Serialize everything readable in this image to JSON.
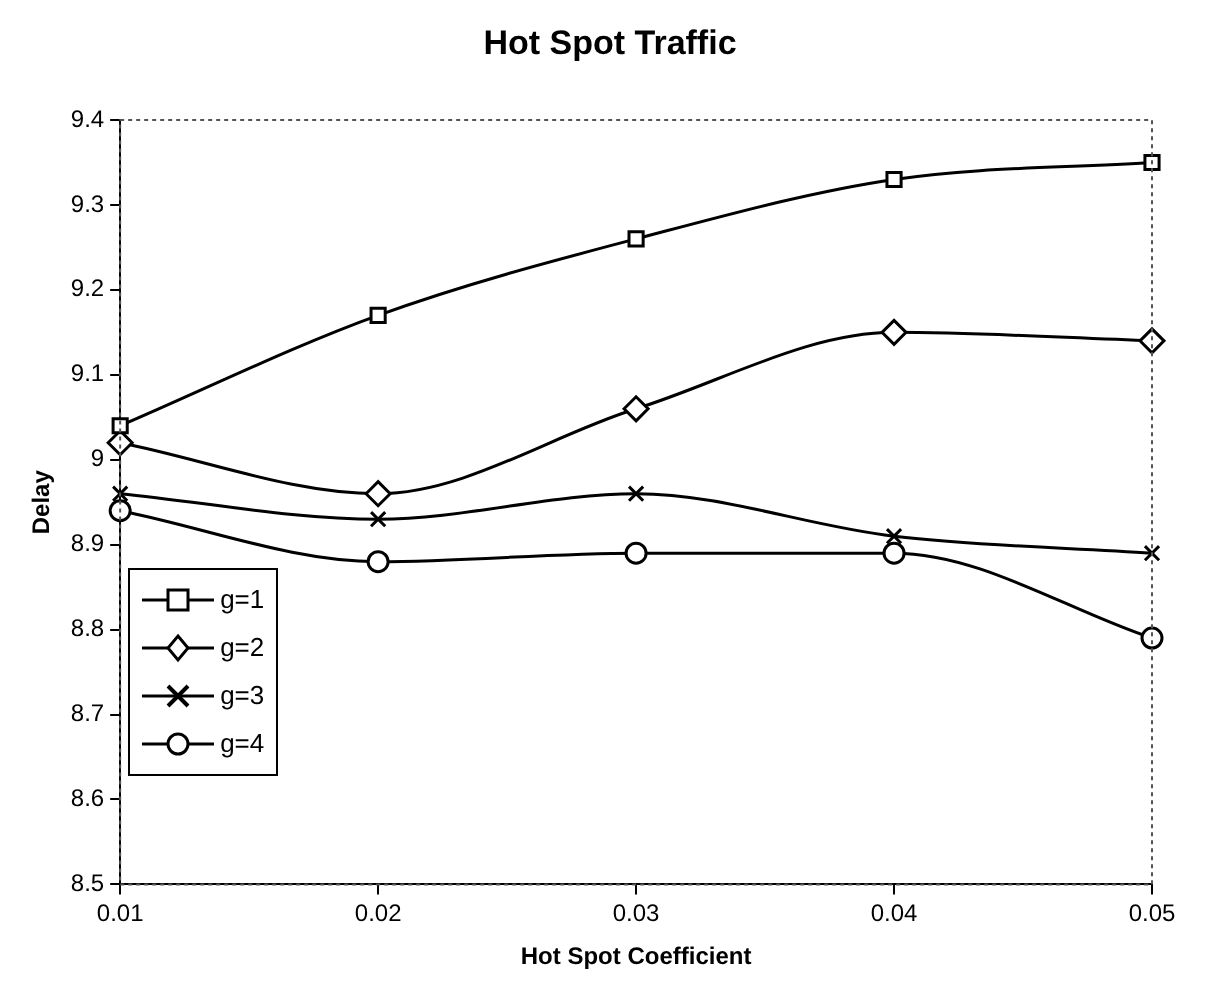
{
  "chart_data": {
    "type": "line",
    "title": "Hot Spot Traffic",
    "xlabel": "Hot Spot Coefficient",
    "ylabel": "Delay",
    "x": [
      0.01,
      0.02,
      0.03,
      0.04,
      0.05
    ],
    "xlim": [
      0.01,
      0.05
    ],
    "xticks": [
      0.01,
      0.02,
      0.03,
      0.04,
      0.05
    ],
    "ylim": [
      8.5,
      9.4
    ],
    "yticks": [
      8.5,
      8.6,
      8.7,
      8.8,
      8.9,
      9,
      9.1,
      9.2,
      9.3,
      9.4
    ],
    "grid": false,
    "legend": "left",
    "line_style": "solid",
    "series": [
      {
        "name": "g=1",
        "color": "#000000",
        "marker": "square",
        "values": [
          9.04,
          9.17,
          9.26,
          9.33,
          9.35
        ]
      },
      {
        "name": "g=2",
        "color": "#000000",
        "marker": "diamond",
        "values": [
          9.02,
          8.96,
          9.06,
          9.15,
          9.14
        ]
      },
      {
        "name": "g=3",
        "color": "#000000",
        "marker": "cross",
        "values": [
          8.96,
          8.93,
          8.96,
          8.91,
          8.89
        ]
      },
      {
        "name": "g=4",
        "color": "#000000",
        "marker": "circle",
        "values": [
          8.94,
          8.88,
          8.89,
          8.89,
          8.79
        ]
      }
    ]
  }
}
